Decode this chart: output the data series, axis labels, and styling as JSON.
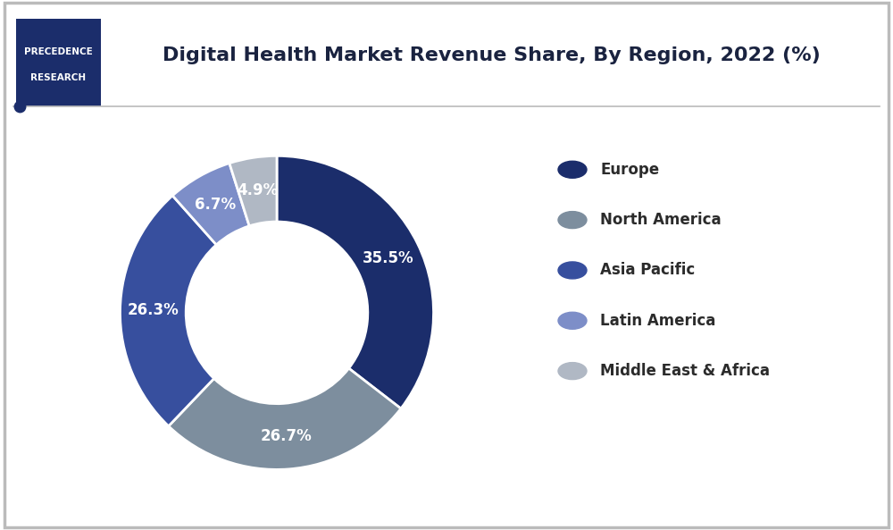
{
  "title": "Digital Health Market Revenue Share, By Region, 2022 (%)",
  "segments": [
    {
      "label": "Europe",
      "value": 35.5,
      "color": "#1b2d6b"
    },
    {
      "label": "North America",
      "value": 26.7,
      "color": "#7d8e9e"
    },
    {
      "label": "Asia Pacific",
      "value": 26.3,
      "color": "#374f9e"
    },
    {
      "label": "Latin America",
      "value": 6.7,
      "color": "#7d8ec8"
    },
    {
      "label": "Middle East & Africa",
      "value": 4.9,
      "color": "#b0b8c4"
    }
  ],
  "background_color": "#ffffff",
  "border_color": "#bbbbbb",
  "title_color": "#1a2340",
  "label_color": "#ffffff",
  "label_fontsize": 12,
  "title_fontsize": 16,
  "legend_fontsize": 12,
  "donut_width": 0.42,
  "start_angle": 90,
  "logo_bg": "#1b2d6b",
  "logo_text_line1": "PRECEDENCE",
  "logo_text_line2": "RESEARCH",
  "logo_text_color": "#ffffff",
  "line_color": "#bbbbbb",
  "dot_color": "#1b2d6b"
}
